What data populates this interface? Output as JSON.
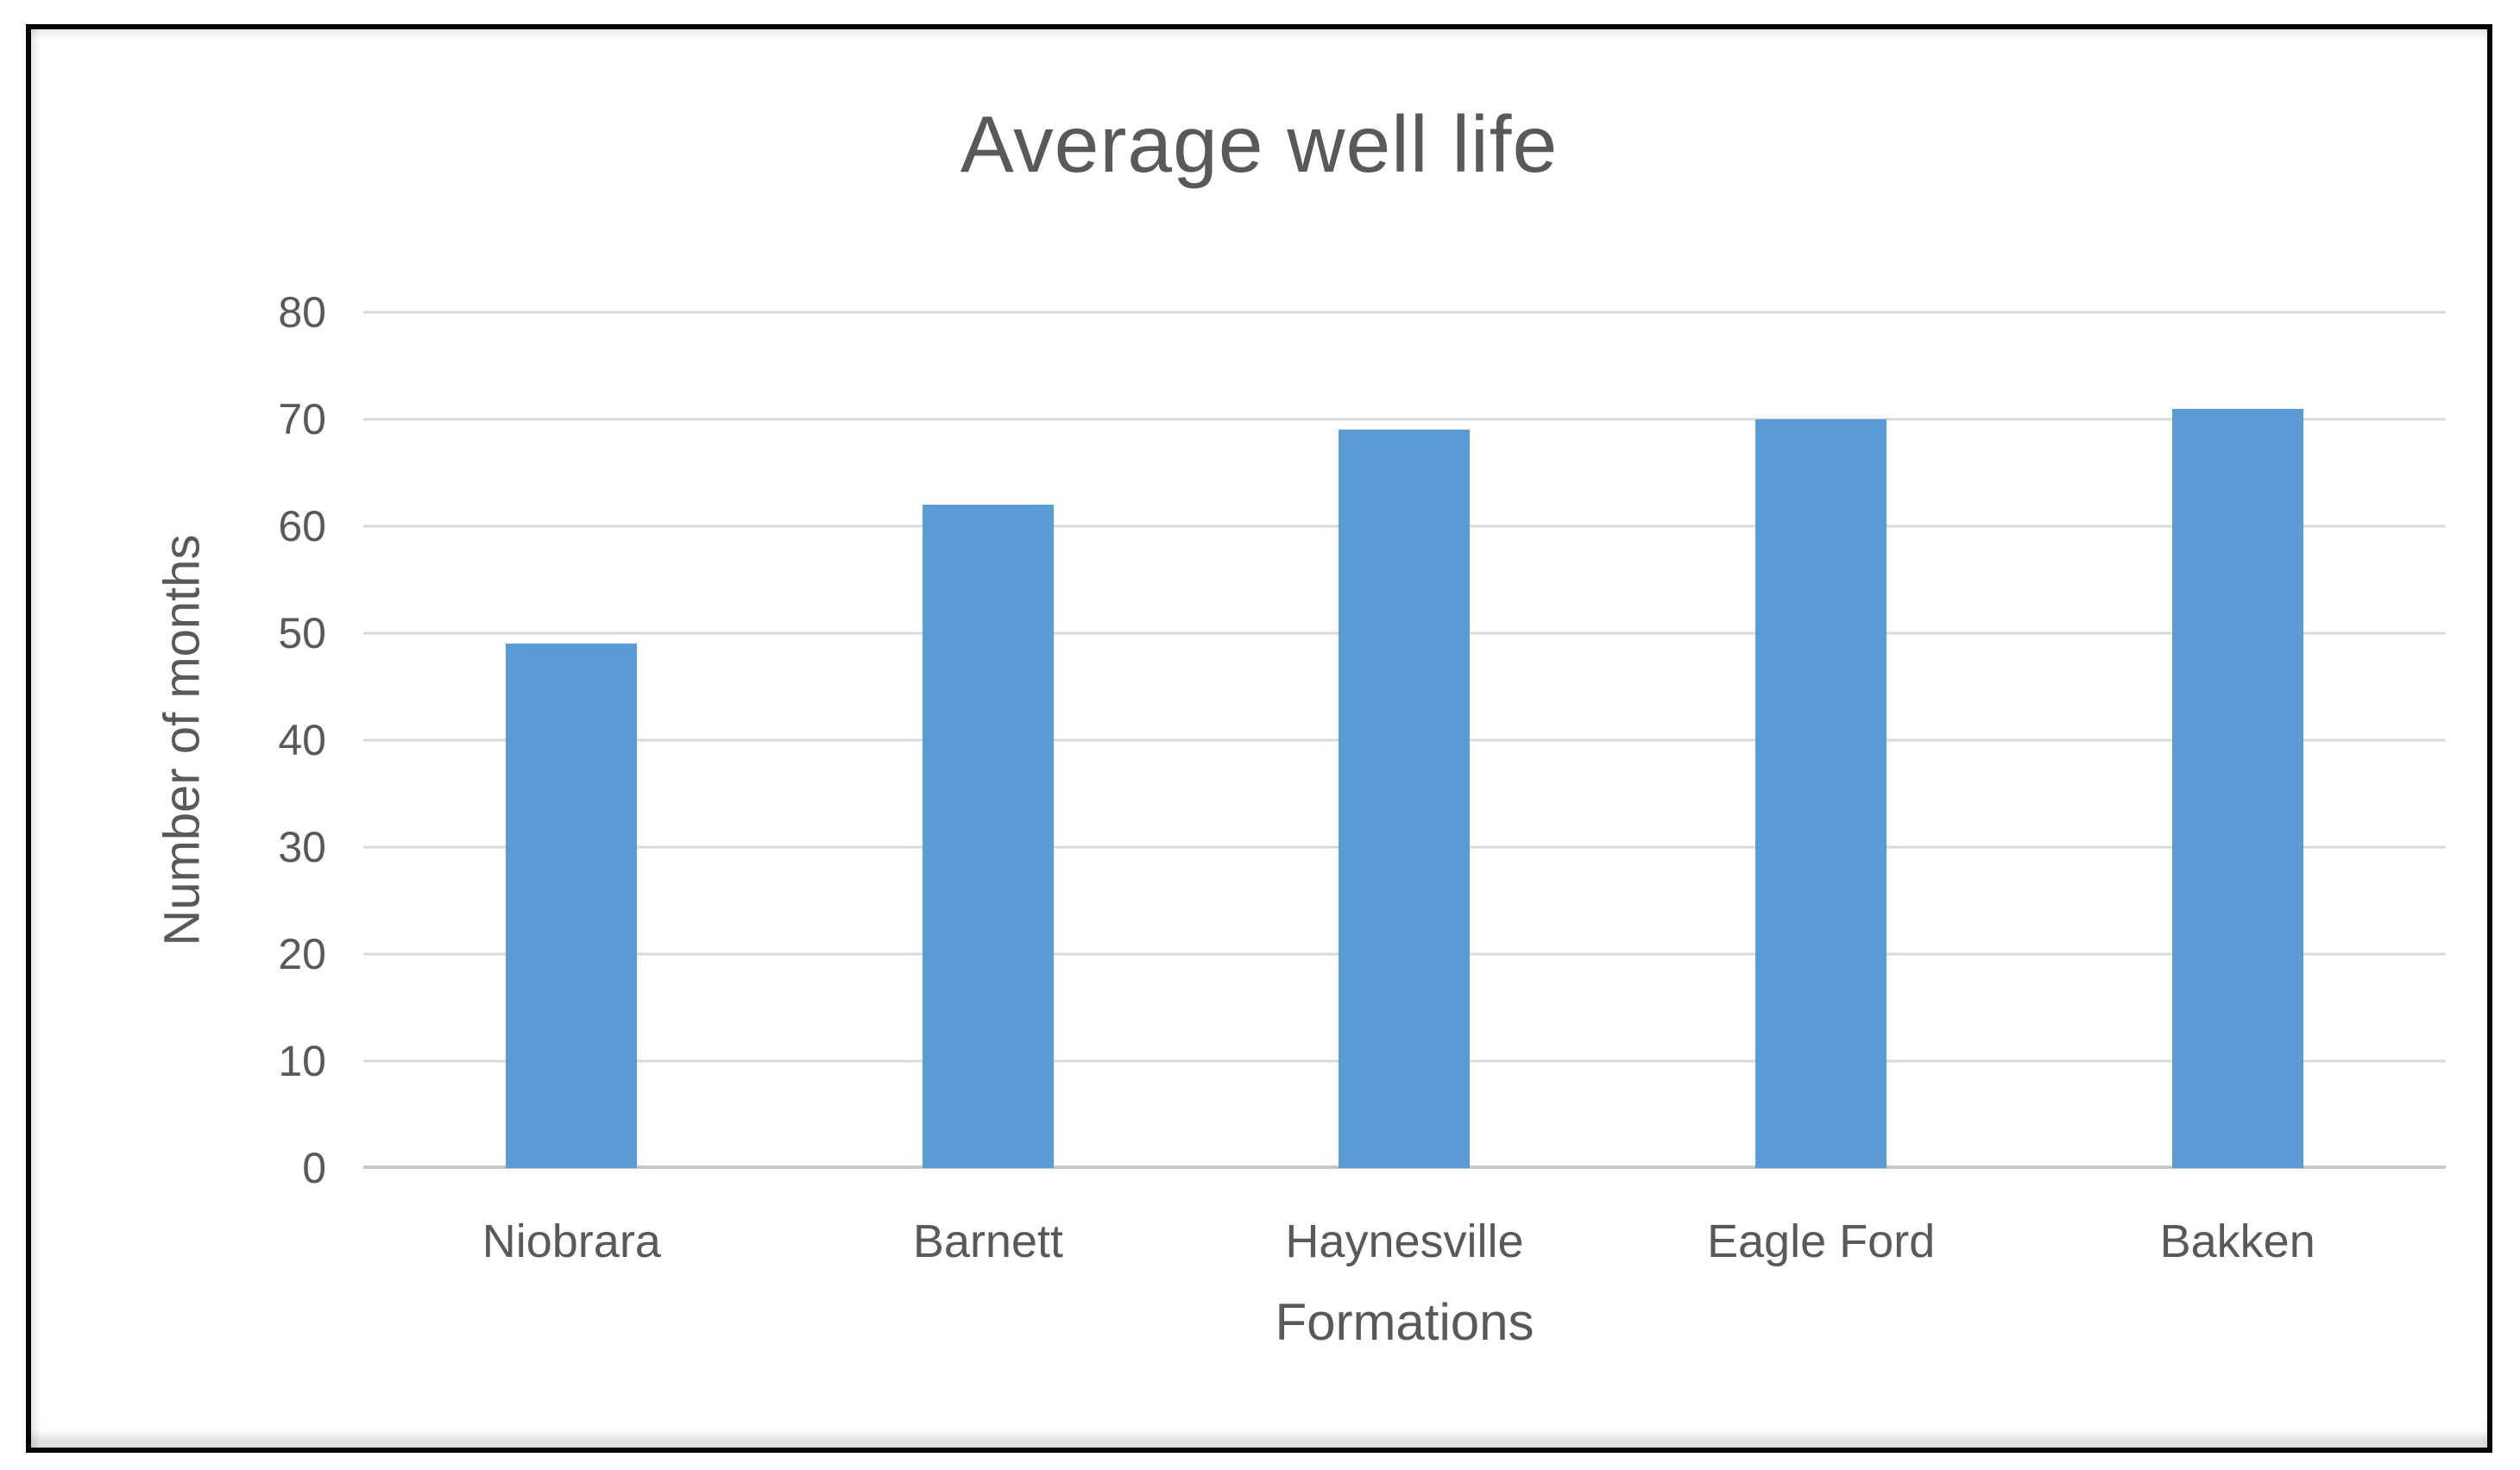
{
  "chart_data": {
    "type": "bar",
    "title": "Average well life",
    "xlabel": "Formations",
    "ylabel": "Number of months",
    "categories": [
      "Niobrara",
      "Barnett",
      "Haynesville",
      "Eagle Ford",
      "Bakken"
    ],
    "values": [
      49,
      62,
      69,
      70,
      71
    ],
    "series": [
      {
        "name": "Average well life",
        "values": [
          49,
          62,
          69,
          70,
          71
        ]
      }
    ],
    "ylim": [
      0,
      80
    ],
    "yticks": [
      0,
      10,
      20,
      30,
      40,
      50,
      60,
      70,
      80
    ],
    "grid": "horizontal-on",
    "legend": "none",
    "colors": {
      "bar": "#5B9BD5",
      "gridline": "#D9D9D9",
      "axis_line": "#C8C8C8",
      "text": "#595959",
      "frame_border": "#050505",
      "background": "#FFFFFF"
    }
  }
}
